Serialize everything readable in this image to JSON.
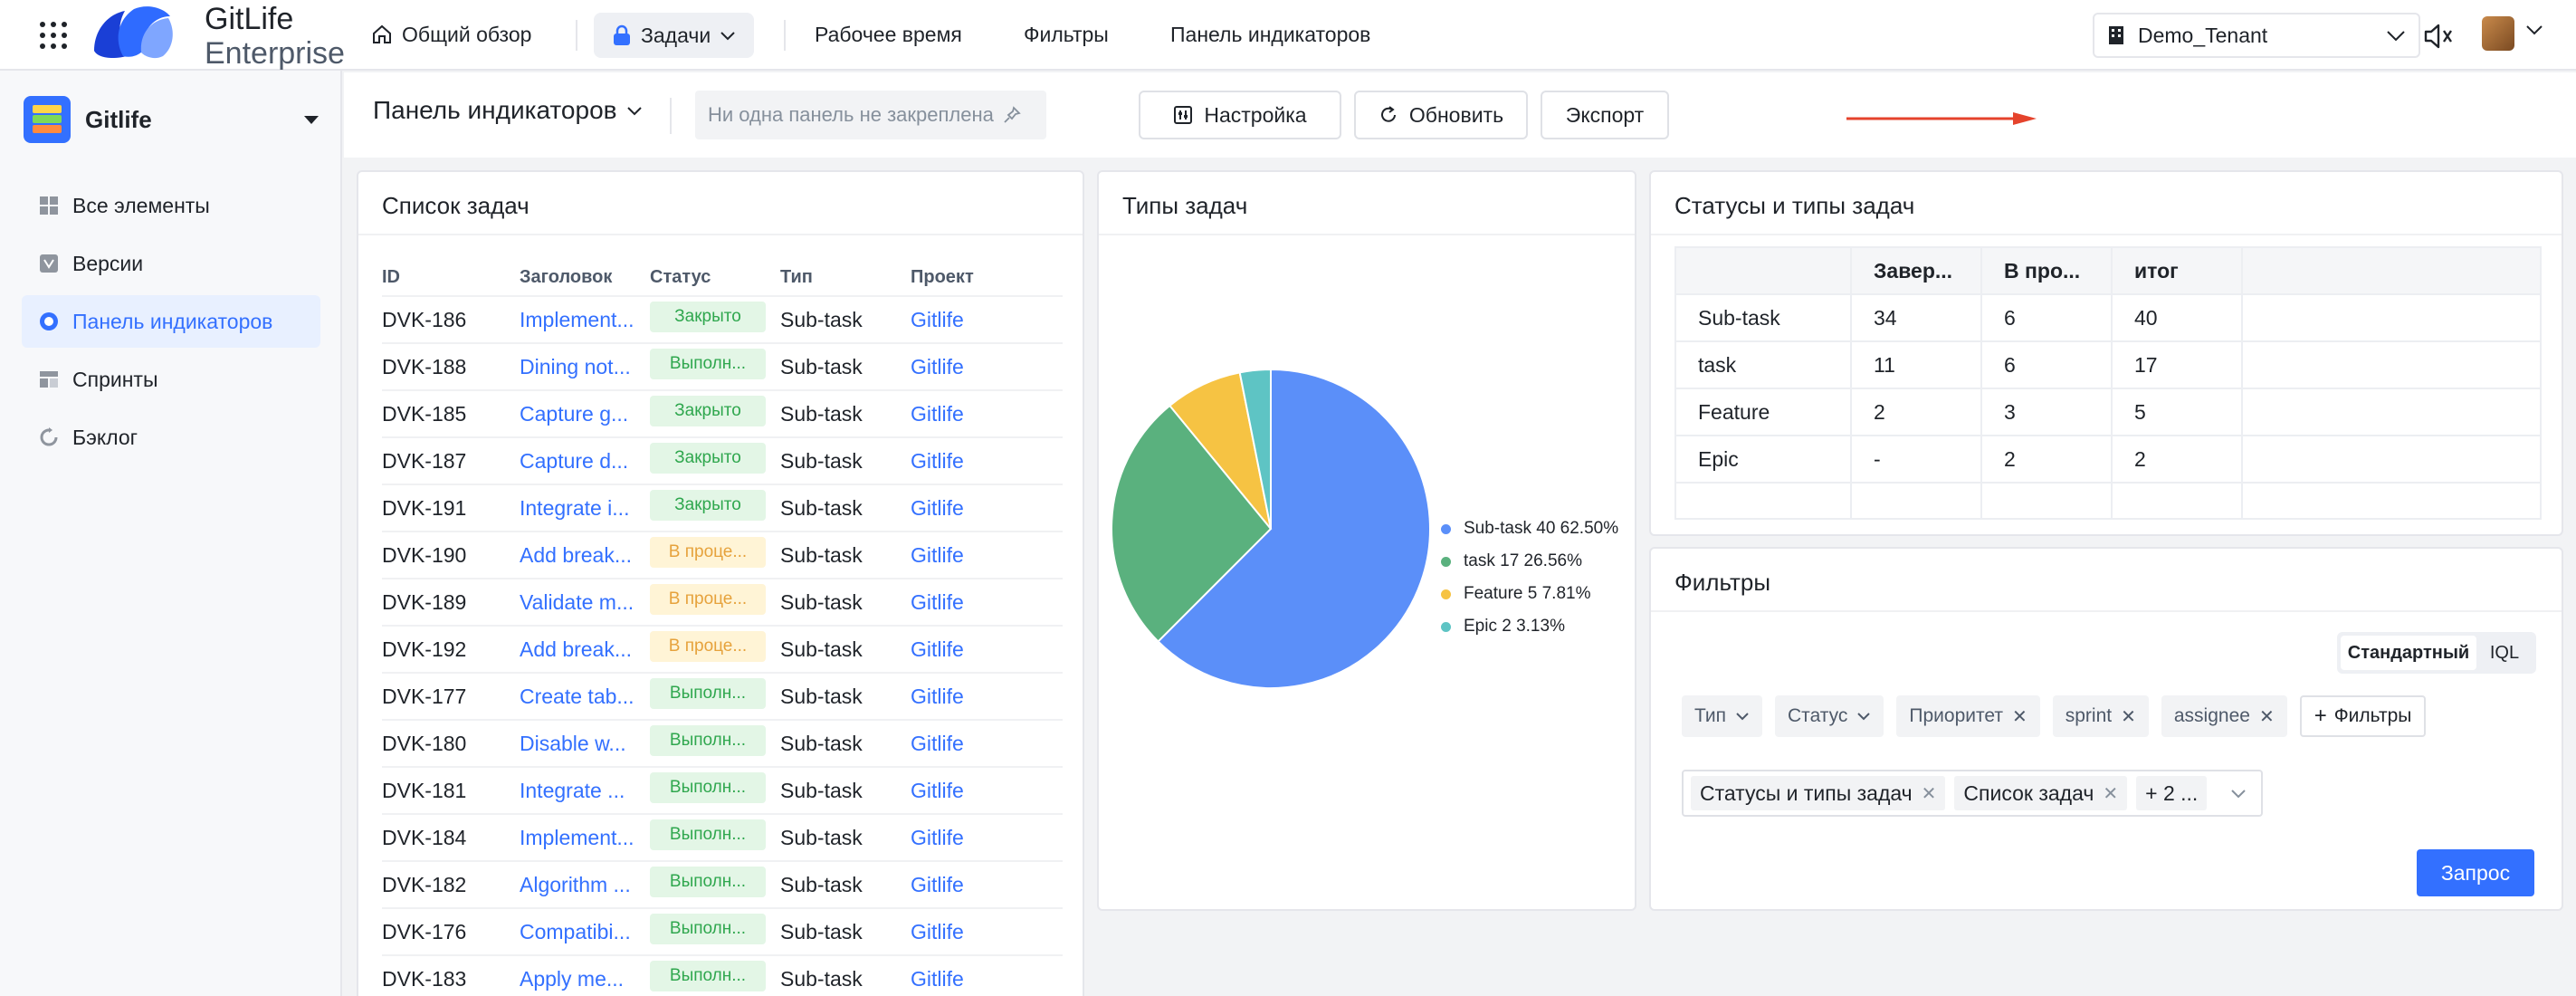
{
  "topbar": {
    "brand_line1": "GitLife",
    "brand_line2": "Enterprise",
    "overview": "Общий обзор",
    "tasks": "Задачи",
    "worktime": "Рабочее время",
    "filters": "Фильтры",
    "dashboard": "Панель индикаторов",
    "tenant": "Demo_Tenant"
  },
  "sidebar": {
    "project": "Gitlife",
    "items": [
      {
        "label": "Все элементы",
        "icon": "grid-icon"
      },
      {
        "label": "Версии",
        "icon": "version-icon"
      },
      {
        "label": "Панель индикаторов",
        "icon": "dashboard-icon",
        "active": true
      },
      {
        "label": "Спринты",
        "icon": "sprint-icon"
      },
      {
        "label": "Бэклог",
        "icon": "backlog-icon"
      }
    ]
  },
  "header": {
    "title": "Панель индикаторов",
    "pin_placeholder": "Ни одна панель не закреплена",
    "settings": "Настройка",
    "refresh": "Обновить",
    "export": "Экспорт"
  },
  "task_list": {
    "title": "Список задач",
    "columns": [
      "ID",
      "Заголовок",
      "Статус",
      "Тип",
      "Проект"
    ],
    "rows": [
      {
        "id": "DVK-186",
        "title": "Implement...",
        "status": "Закрыто",
        "kind": "done",
        "type": "Sub-task",
        "project": "Gitlife"
      },
      {
        "id": "DVK-188",
        "title": "Dining not...",
        "status": "Выполн...",
        "kind": "done",
        "type": "Sub-task",
        "project": "Gitlife"
      },
      {
        "id": "DVK-185",
        "title": "Capture g...",
        "status": "Закрыто",
        "kind": "done",
        "type": "Sub-task",
        "project": "Gitlife"
      },
      {
        "id": "DVK-187",
        "title": "Capture d...",
        "status": "Закрыто",
        "kind": "done",
        "type": "Sub-task",
        "project": "Gitlife"
      },
      {
        "id": "DVK-191",
        "title": "Integrate i...",
        "status": "Закрыто",
        "kind": "done",
        "type": "Sub-task",
        "project": "Gitlife"
      },
      {
        "id": "DVK-190",
        "title": "Add break...",
        "status": "В проце...",
        "kind": "prog",
        "type": "Sub-task",
        "project": "Gitlife"
      },
      {
        "id": "DVK-189",
        "title": "Validate m...",
        "status": "В проце...",
        "kind": "prog",
        "type": "Sub-task",
        "project": "Gitlife"
      },
      {
        "id": "DVK-192",
        "title": "Add break...",
        "status": "В проце...",
        "kind": "prog",
        "type": "Sub-task",
        "project": "Gitlife"
      },
      {
        "id": "DVK-177",
        "title": "Create tab...",
        "status": "Выполн...",
        "kind": "done",
        "type": "Sub-task",
        "project": "Gitlife"
      },
      {
        "id": "DVK-180",
        "title": "Disable w...",
        "status": "Выполн...",
        "kind": "done",
        "type": "Sub-task",
        "project": "Gitlife"
      },
      {
        "id": "DVK-181",
        "title": "Integrate ...",
        "status": "Выполн...",
        "kind": "done",
        "type": "Sub-task",
        "project": "Gitlife"
      },
      {
        "id": "DVK-184",
        "title": "Implement...",
        "status": "Выполн...",
        "kind": "done",
        "type": "Sub-task",
        "project": "Gitlife"
      },
      {
        "id": "DVK-182",
        "title": "Algorithm ...",
        "status": "Выполн...",
        "kind": "done",
        "type": "Sub-task",
        "project": "Gitlife"
      },
      {
        "id": "DVK-176",
        "title": "Compatibi...",
        "status": "Выполн...",
        "kind": "done",
        "type": "Sub-task",
        "project": "Gitlife"
      },
      {
        "id": "DVK-183",
        "title": "Apply me...",
        "status": "Выполн...",
        "kind": "done",
        "type": "Sub-task",
        "project": "Gitlife"
      }
    ]
  },
  "task_types": {
    "title": "Типы задач"
  },
  "chart_data": {
    "type": "pie",
    "title": "Типы задач",
    "categories": [
      "Sub-task",
      "task",
      "Feature",
      "Epic"
    ],
    "values": [
      40,
      17,
      5,
      2
    ],
    "percentages": [
      62.5,
      26.56,
      7.81,
      3.13
    ],
    "legend_labels": [
      "Sub-task 40 62.50%",
      "task 17 26.56%",
      "Feature 5 7.81%",
      "Epic 2 3.13%"
    ],
    "colors": [
      "#5b8ff9",
      "#5ab17e",
      "#f6c343",
      "#5ec4c4"
    ],
    "legend_position": "right"
  },
  "status_table": {
    "title": "Статусы и типы задач",
    "columns": [
      "",
      "Завер...",
      "В про...",
      "итог"
    ],
    "rows": [
      [
        "Sub-task",
        "34",
        "6",
        "40"
      ],
      [
        "task",
        "11",
        "6",
        "17"
      ],
      [
        "Feature",
        "2",
        "3",
        "5"
      ],
      [
        "Epic",
        "-",
        "2",
        "2"
      ]
    ]
  },
  "filters_card": {
    "title": "Фильтры",
    "mode_standard": "Стандартный",
    "mode_iql": "IQL",
    "chips": [
      {
        "label": "Тип",
        "kind": "dropdown"
      },
      {
        "label": "Статус",
        "kind": "dropdown"
      },
      {
        "label": "Приоритет",
        "kind": "removable"
      },
      {
        "label": "sprint",
        "kind": "removable"
      },
      {
        "label": "assignee",
        "kind": "removable"
      }
    ],
    "add_filter": "Фильтры",
    "selected": [
      "Статусы и типы задач",
      "Список задач"
    ],
    "more": "+ 2 ...",
    "query": "Запрос"
  },
  "colors": {
    "accent": "#3370ff",
    "arrow": "#e5432c"
  }
}
